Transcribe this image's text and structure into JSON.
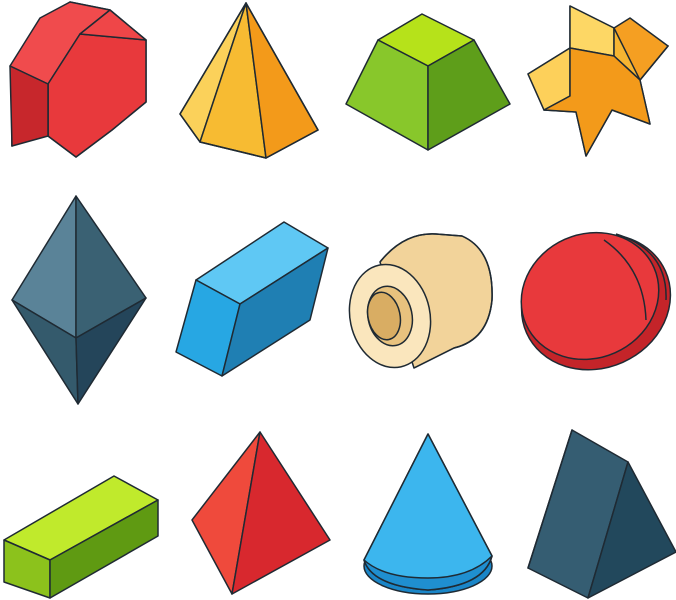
{
  "palette": {
    "outline": "#1f2a33",
    "red": "#e8393c",
    "orange_yellow": "#f7b531",
    "green": "#7cbf26",
    "orange": "#f39a1a",
    "slate": "#4a6f82",
    "blue": "#27a7e3",
    "beige": "#f2d39a",
    "lime": "#93d21f",
    "navy": "#2f5466"
  },
  "shapes": [
    {
      "name": "octagonal-prism",
      "color": "red"
    },
    {
      "name": "pentagonal-pyramid",
      "color": "orange_yellow"
    },
    {
      "name": "square-frustum",
      "color": "green"
    },
    {
      "name": "star-prism",
      "color": "orange"
    },
    {
      "name": "octahedron",
      "color": "slate"
    },
    {
      "name": "parallelepiped",
      "color": "blue"
    },
    {
      "name": "hollow-cylinder",
      "color": "beige"
    },
    {
      "name": "ellipsoid",
      "color": "red"
    },
    {
      "name": "rectangular-prism",
      "color": "lime"
    },
    {
      "name": "tetrahedron",
      "color": "red"
    },
    {
      "name": "cone",
      "color": "blue"
    },
    {
      "name": "triangular-prism",
      "color": "navy"
    }
  ]
}
